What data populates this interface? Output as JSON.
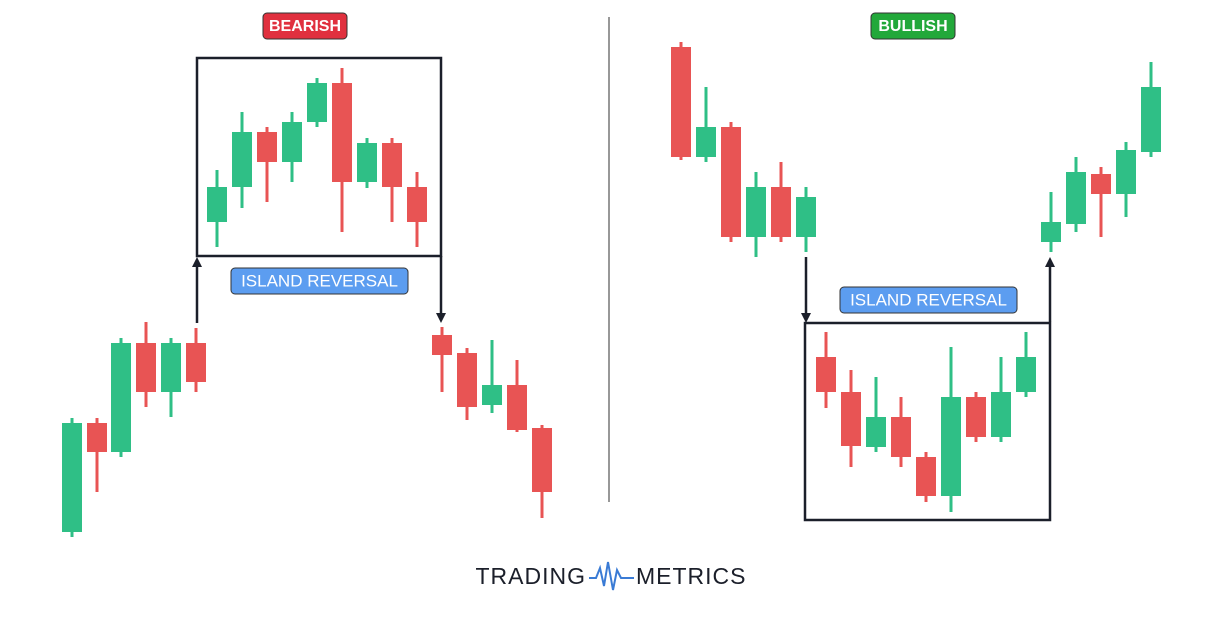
{
  "left": {
    "badge": "BEARISH",
    "label": "ISLAND REVERSAL"
  },
  "right": {
    "badge": "BULLISH",
    "label": "ISLAND REVERSAL"
  },
  "logo": {
    "left": "TRADING",
    "right": "METRICS"
  }
}
